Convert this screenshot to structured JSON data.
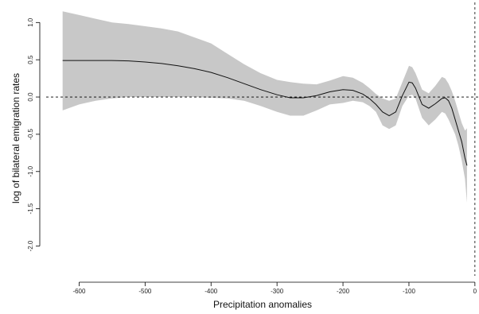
{
  "chart_data": {
    "type": "line",
    "title": "",
    "xlabel": "Precipitation anomalies",
    "ylabel": "log of bilateral emigration rates",
    "xlim": [
      -650,
      5
    ],
    "ylim": [
      -2.4,
      1.27
    ],
    "xticks": [
      -600,
      -500,
      -400,
      -300,
      -200,
      -100,
      0
    ],
    "xtick_labels": [
      "-600",
      "-500",
      "-400",
      "-300",
      "-200",
      "-100",
      "0"
    ],
    "yticks": [
      1.0,
      0.5,
      0.0,
      -0.5,
      -1.0,
      -1.5,
      -2.0
    ],
    "ytick_labels": [
      "1.0",
      "0.5",
      "0.0",
      "-0.5",
      "-1.0",
      "-1.5",
      "-2.0"
    ],
    "grid": false,
    "reference_lines": {
      "horizontal_y": 0,
      "vertical_x": 0,
      "style": "dashed"
    },
    "colors": {
      "line": "#111111",
      "band": "#c8c8c8",
      "axis": "#000000"
    },
    "series": [
      {
        "x": [
          -625,
          -600,
          -575,
          -550,
          -525,
          -500,
          -475,
          -450,
          -425,
          -400,
          -375,
          -350,
          -325,
          -300,
          -280,
          -260,
          -240,
          -220,
          -200,
          -185,
          -170,
          -160,
          -150,
          -140,
          -130,
          -120,
          -110,
          -100,
          -95,
          -90,
          -80,
          -70,
          -60,
          -50,
          -45,
          -40,
          -35,
          -30,
          -25,
          -20,
          -15,
          -12
        ],
        "values": [
          0.49,
          0.49,
          0.49,
          0.49,
          0.485,
          0.47,
          0.45,
          0.42,
          0.38,
          0.33,
          0.26,
          0.18,
          0.1,
          0.03,
          -0.01,
          -0.01,
          0.02,
          0.07,
          0.1,
          0.09,
          0.04,
          -0.02,
          -0.1,
          -0.2,
          -0.25,
          -0.2,
          0.02,
          0.2,
          0.19,
          0.12,
          -0.1,
          -0.15,
          -0.09,
          -0.02,
          -0.01,
          -0.05,
          -0.15,
          -0.3,
          -0.45,
          -0.6,
          -0.82,
          -0.92
        ],
        "lower": [
          -0.18,
          -0.1,
          -0.05,
          -0.02,
          0.0,
          0.0,
          0.0,
          0.0,
          0.0,
          -0.01,
          -0.02,
          -0.05,
          -0.12,
          -0.2,
          -0.25,
          -0.25,
          -0.18,
          -0.1,
          -0.08,
          -0.05,
          -0.07,
          -0.12,
          -0.2,
          -0.38,
          -0.43,
          -0.38,
          -0.12,
          0.02,
          0.03,
          -0.02,
          -0.28,
          -0.38,
          -0.3,
          -0.2,
          -0.22,
          -0.3,
          -0.4,
          -0.5,
          -0.65,
          -0.85,
          -1.1,
          -1.42
        ],
        "upper": [
          1.15,
          1.1,
          1.05,
          1.0,
          0.98,
          0.95,
          0.92,
          0.88,
          0.8,
          0.72,
          0.58,
          0.44,
          0.32,
          0.23,
          0.2,
          0.18,
          0.17,
          0.22,
          0.28,
          0.26,
          0.19,
          0.12,
          0.04,
          -0.02,
          -0.05,
          -0.02,
          0.2,
          0.42,
          0.4,
          0.32,
          0.1,
          0.05,
          0.15,
          0.27,
          0.25,
          0.18,
          0.08,
          -0.05,
          -0.2,
          -0.35,
          -0.45,
          -0.42
        ]
      }
    ]
  }
}
